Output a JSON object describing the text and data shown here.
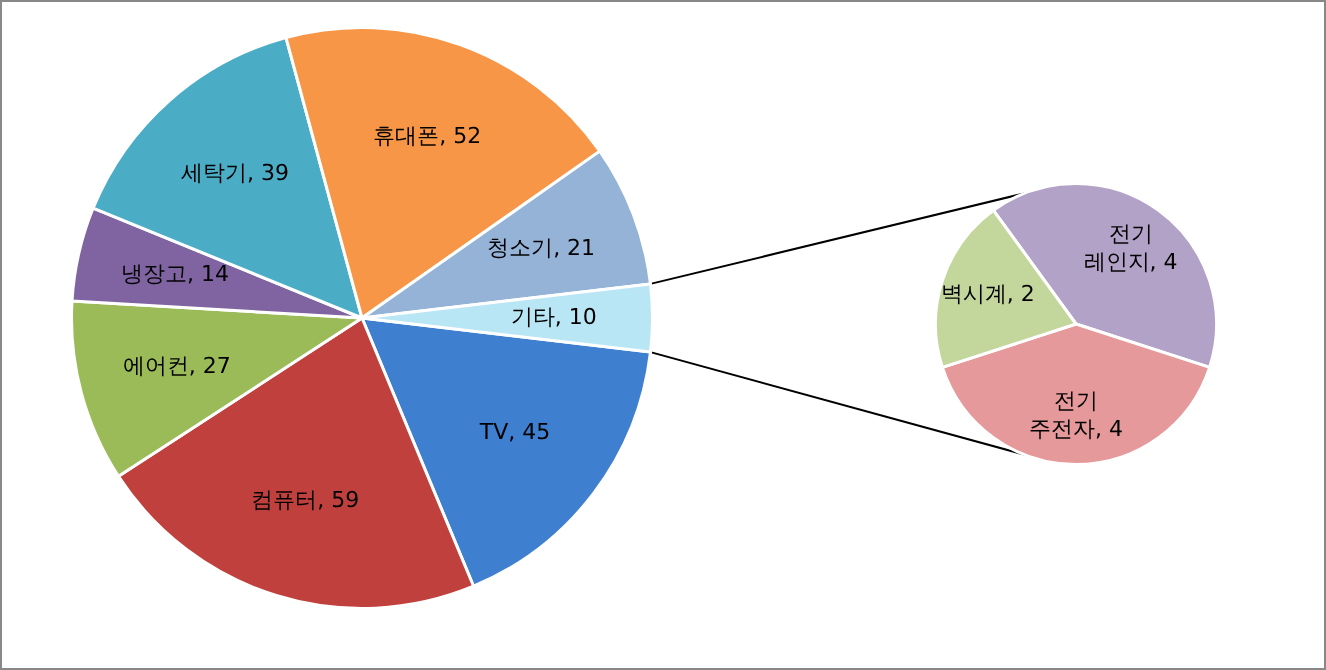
{
  "chart_data": [
    {
      "type": "pie",
      "categories": [
        "TV",
        "컴퓨터",
        "에어컨",
        "냉장고",
        "세탁기",
        "휴대폰",
        "청소기",
        "기타"
      ],
      "values": [
        45,
        59,
        27,
        14,
        39,
        52,
        21,
        10
      ],
      "colors": [
        "#3f7fd0",
        "#c0403d",
        "#9bbb59",
        "#8064a2",
        "#4bacc6",
        "#f79646",
        "#95b3d7",
        "#b9e6f5"
      ],
      "value_labels": [
        ", 45",
        ", 59",
        ", 27",
        ", 14",
        ", 39",
        ", 52",
        ", 21",
        ", 10"
      ]
    },
    {
      "type": "pie",
      "categories": [
        "전기 레인지",
        "전기 주전자",
        "벽시계"
      ],
      "values": [
        4,
        4,
        2
      ],
      "colors": [
        "#b3a2c7",
        "#e6999a",
        "#c3d69b"
      ],
      "value_labels": [
        ", 4",
        ", 4",
        ", 2"
      ]
    }
  ]
}
